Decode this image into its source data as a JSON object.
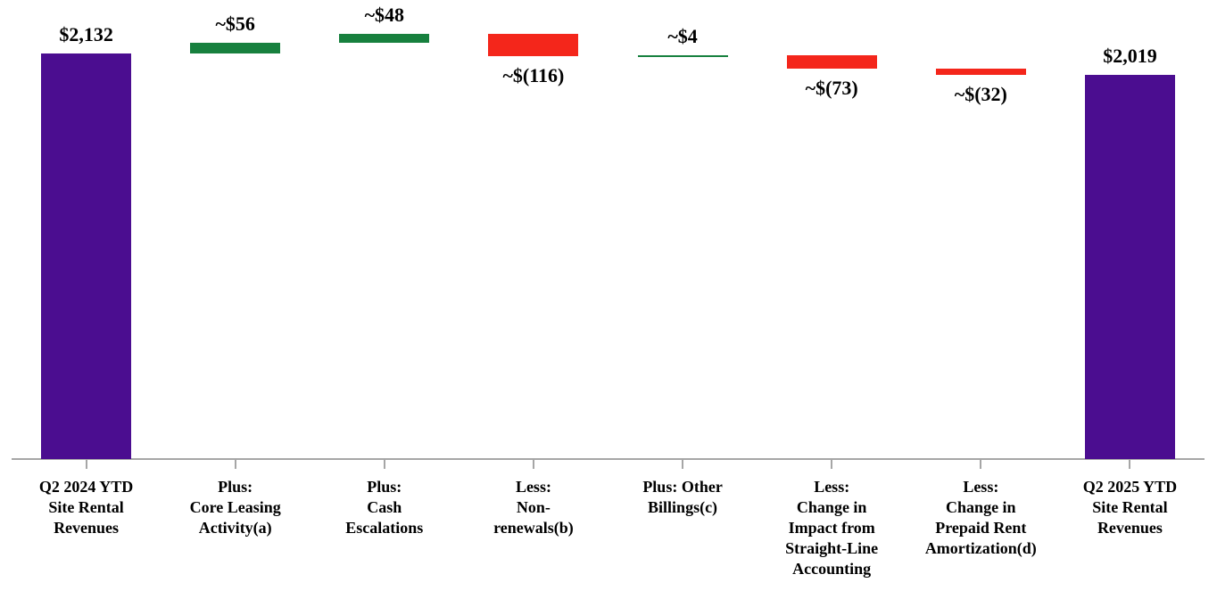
{
  "chart_data": {
    "type": "bar",
    "subtype": "waterfall",
    "title": "",
    "xlabel": "",
    "ylabel": "",
    "grid": false,
    "legend": false,
    "categories": [
      "Q2 2024 YTD\nSite Rental\nRevenues",
      "Plus:\nCore Leasing\nActivity(a)",
      "Plus:\nCash\nEscalations",
      "Less:\nNon-\nrenewals(b)",
      "Plus: Other\nBillings(c)",
      "Less:\nChange in\nImpact from\nStraight-Line\nAccounting",
      "Less:\nChange in\nPrepaid Rent\nAmortization(d)",
      "Q2 2025 YTD\nSite Rental\nRevenues"
    ],
    "values": [
      2132,
      56,
      48,
      -116,
      4,
      -73,
      -32,
      2019
    ],
    "bar_roles": [
      "total",
      "increase",
      "increase",
      "decrease",
      "increase",
      "decrease",
      "decrease",
      "total"
    ],
    "running_totals": [
      2132,
      2188,
      2236,
      2120,
      2124,
      2051,
      2019,
      2019
    ],
    "value_labels": [
      "$2,132",
      "~$56",
      "~$48",
      "~$(116)",
      "~$4",
      "~$(73)",
      "~$(32)",
      "$2,019"
    ],
    "value_label_positions": [
      "above",
      "above",
      "above",
      "below",
      "above",
      "below",
      "below",
      "above"
    ],
    "ylim": [
      0,
      2350
    ],
    "colors": {
      "total": "#4B0D90",
      "increase": "#17803E",
      "decrease": "#F4261B",
      "axis": "#A6A6A6",
      "text": "#000000"
    }
  }
}
